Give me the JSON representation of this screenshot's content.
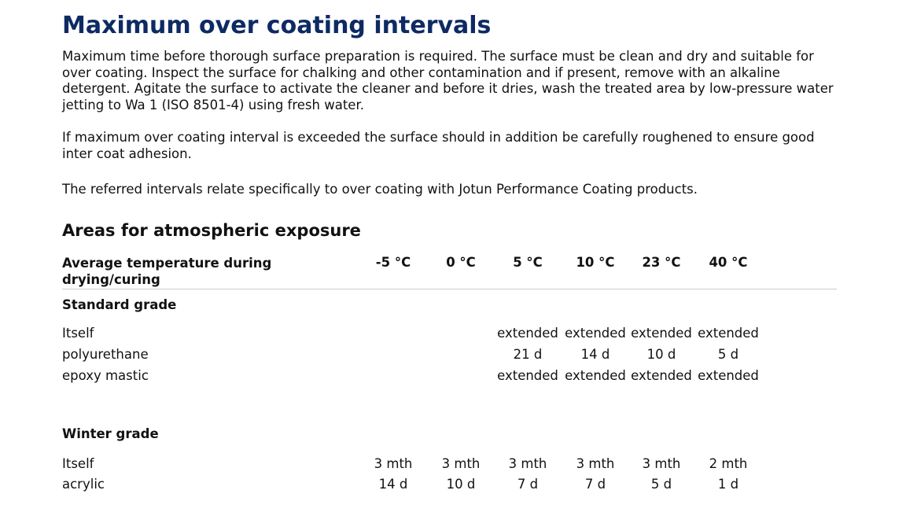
{
  "header": {
    "title": "Maximum over coating intervals"
  },
  "paragraphs": [
    "Maximum time before thorough surface preparation is required. The surface must be clean and dry and suitable for over coating. Inspect the surface for chalking and other contamination and if present, remove with an alkaline detergent. Agitate the surface to activate the cleaner and before it dries, wash the treated area by low-pressure water jetting to Wa 1 (ISO 8501-4) using fresh water.",
    "If maximum over coating interval is exceeded the surface should in addition be carefully roughened to ensure good inter coat adhesion.",
    "The referred intervals relate specifically to over coating with Jotun Performance Coating products."
  ],
  "section": {
    "title": "Areas for atmospheric exposure",
    "table": {
      "header": [
        "Average temperature during drying/curing",
        "-5 °C",
        "0 °C",
        "5 °C",
        "10 °C",
        "23 °C",
        "40 °C"
      ],
      "groups": [
        {
          "title": "Standard grade",
          "rows": [
            [
              "Itself",
              null,
              null,
              "extended",
              "extended",
              "extended",
              "extended"
            ],
            [
              "polyurethane",
              null,
              null,
              "21 d",
              "14 d",
              "10 d",
              "5 d"
            ],
            [
              "epoxy mastic",
              null,
              null,
              "extended",
              "extended",
              "extended",
              "extended"
            ]
          ]
        },
        {
          "title": "Winter grade",
          "rows": [
            [
              "Itself",
              "3 mth",
              "3 mth",
              "3 mth",
              "3 mth",
              "3 mth",
              "2 mth"
            ],
            [
              "acrylic",
              "14 d",
              "10 d",
              "7 d",
              "7 d",
              "5 d",
              "1 d"
            ]
          ]
        }
      ]
    }
  }
}
